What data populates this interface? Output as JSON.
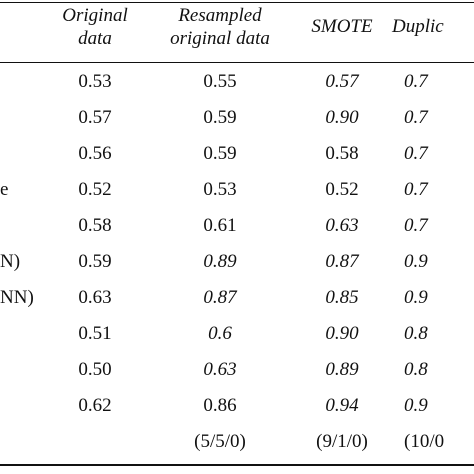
{
  "table": {
    "headers": {
      "original": [
        "Original",
        "data"
      ],
      "resampled": [
        "Resampled",
        "original data"
      ],
      "smote": "SMOTE",
      "duplicated": "Duplic"
    },
    "rows": [
      {
        "label": "",
        "original": "0.53",
        "resampled": "0.55",
        "resampled_italic": false,
        "smote": "0.57",
        "smote_italic": true,
        "duplicated": "0.7",
        "duplicated_italic": true
      },
      {
        "label": "",
        "original": "0.57",
        "resampled": "0.59",
        "resampled_italic": false,
        "smote": "0.90",
        "smote_italic": true,
        "duplicated": "0.7",
        "duplicated_italic": true
      },
      {
        "label": "",
        "original": "0.56",
        "resampled": "0.59",
        "resampled_italic": false,
        "smote": "0.58",
        "smote_italic": false,
        "duplicated": "0.7",
        "duplicated_italic": true
      },
      {
        "label": "e",
        "original": "0.52",
        "resampled": "0.53",
        "resampled_italic": false,
        "smote": "0.52",
        "smote_italic": false,
        "duplicated": "0.7",
        "duplicated_italic": true
      },
      {
        "label": "",
        "original": "0.58",
        "resampled": "0.61",
        "resampled_italic": false,
        "smote": "0.63",
        "smote_italic": true,
        "duplicated": "0.7",
        "duplicated_italic": true
      },
      {
        "label": "N)",
        "original": "0.59",
        "resampled": "0.89",
        "resampled_italic": true,
        "smote": "0.87",
        "smote_italic": true,
        "duplicated": "0.9",
        "duplicated_italic": true
      },
      {
        "label": "NN)",
        "original": "0.63",
        "resampled": "0.87",
        "resampled_italic": true,
        "smote": "0.85",
        "smote_italic": true,
        "duplicated": "0.9",
        "duplicated_italic": true
      },
      {
        "label": "",
        "original": "0.51",
        "resampled": "0.6",
        "resampled_italic": true,
        "smote": "0.90",
        "smote_italic": true,
        "duplicated": "0.8",
        "duplicated_italic": true
      },
      {
        "label": "",
        "original": "0.50",
        "resampled": "0.63",
        "resampled_italic": true,
        "smote": "0.89",
        "smote_italic": true,
        "duplicated": "0.8",
        "duplicated_italic": true
      },
      {
        "label": "",
        "original": "0.62",
        "resampled": "0.86",
        "resampled_italic": false,
        "smote": "0.94",
        "smote_italic": true,
        "duplicated": "0.9",
        "duplicated_italic": true
      }
    ],
    "footer": {
      "resampled": "(5/5/0)",
      "smote": "(9/1/0)",
      "duplicated": "(10/0"
    }
  }
}
